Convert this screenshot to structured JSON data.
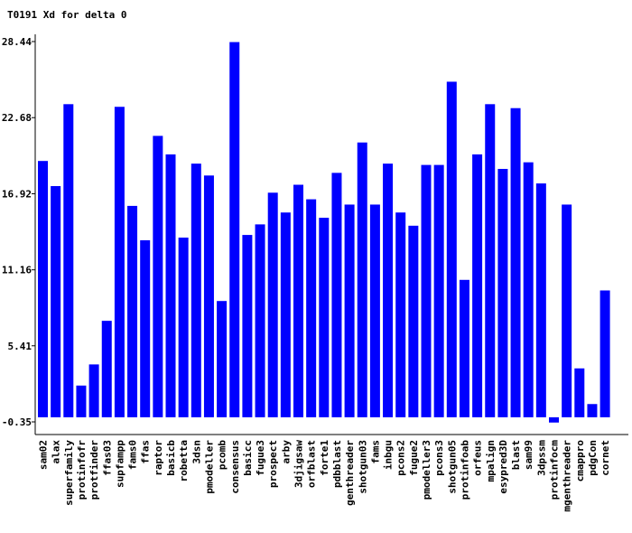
{
  "chart_data": {
    "type": "bar",
    "title": "T0191 Xd for delta 0",
    "xlabel": "",
    "ylabel": "",
    "ylim": [
      -0.35,
      28.44
    ],
    "yticks": [
      "28.44",
      "22.68",
      "16.92",
      "11.16",
      "5.41",
      "-0.35"
    ],
    "bar_color": "#0000ff",
    "grid": false,
    "categories": [
      "sam02",
      "alax",
      "superfamily",
      "protinfofr",
      "protfinder",
      "ffas03",
      "supfampp",
      "fams0",
      "ffas",
      "raptor",
      "basicb",
      "robetta",
      "3dsn",
      "pmodeller",
      "pcomb",
      "consensus",
      "basicc",
      "fugue3",
      "prospect",
      "arby",
      "3djigsaw",
      "orfblast",
      "forte1",
      "pdbblast",
      "genthreader",
      "shotgun03",
      "fams",
      "inbgu",
      "pcons2",
      "fugue2",
      "pmodeller3",
      "pcons3",
      "shotgun05",
      "protinfoab",
      "orfeus",
      "mpalign",
      "esypred3D",
      "blast",
      "sam99",
      "3dpssm",
      "protinfocm",
      "mgenthreader",
      "cmappro",
      "pdgCon",
      "cornet"
    ],
    "values": [
      19.4,
      17.5,
      23.7,
      2.4,
      4.0,
      7.3,
      23.5,
      16.0,
      13.4,
      21.3,
      19.9,
      13.6,
      19.2,
      18.3,
      8.8,
      28.4,
      13.8,
      14.6,
      17.0,
      15.5,
      17.6,
      16.5,
      15.1,
      18.5,
      16.1,
      20.8,
      16.1,
      19.2,
      15.5,
      14.5,
      19.1,
      19.1,
      25.4,
      10.4,
      19.9,
      23.7,
      18.8,
      23.4,
      19.3,
      17.7,
      -0.4,
      16.1,
      3.7,
      1.0,
      9.6
    ]
  }
}
